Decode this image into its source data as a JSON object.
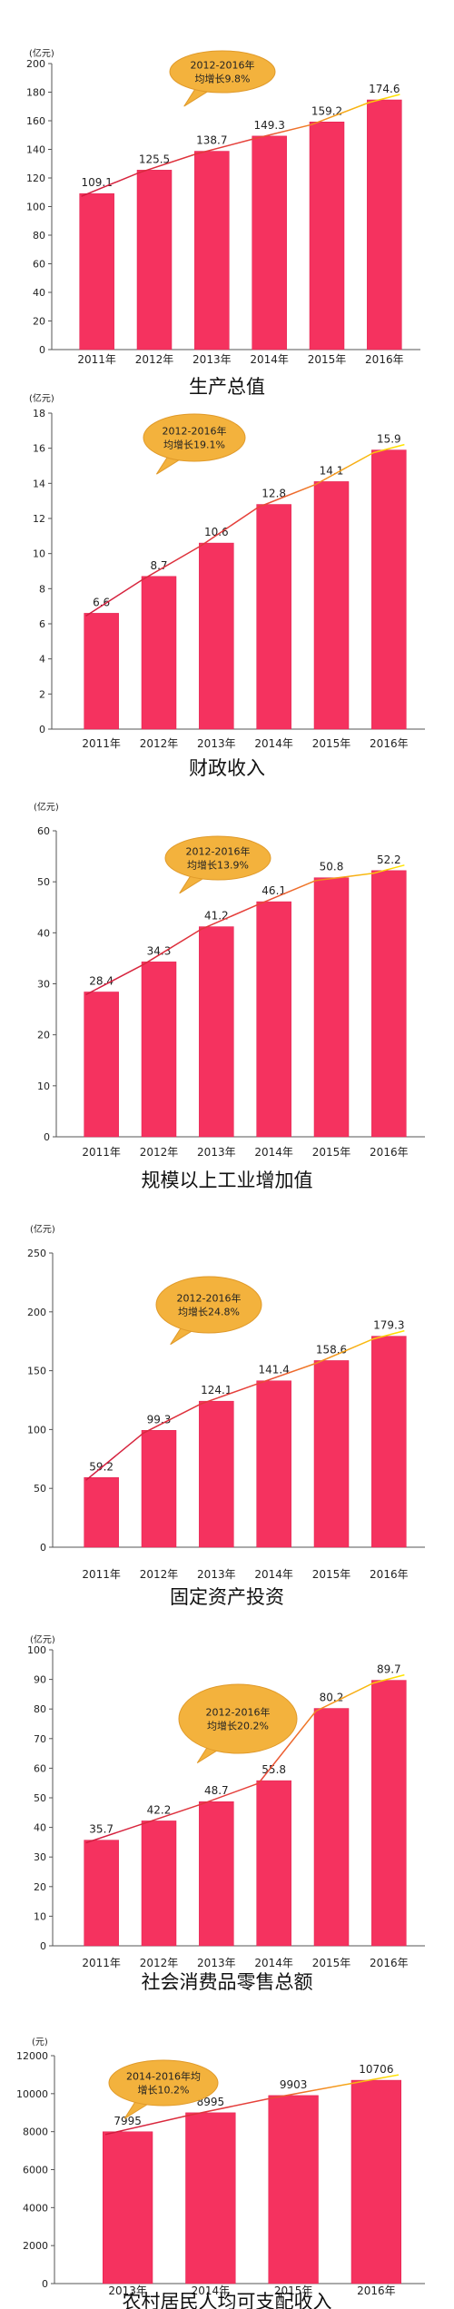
{
  "colors": {
    "bar": "#f5325f",
    "bar_edge": "#e01e4c",
    "bubble": "#f3b23d",
    "bubble_edge": "#e09a2a",
    "trend_start": "#d11a3f",
    "trend_end": "#ffe600",
    "axis": "#555555"
  },
  "chart_data": [
    {
      "type": "bar",
      "title": "生产总值",
      "unit": "(亿元)",
      "categories": [
        "2011年",
        "2012年",
        "2013年",
        "2014年",
        "2015年",
        "2016年"
      ],
      "values": [
        109.1,
        125.5,
        138.7,
        149.3,
        159.2,
        174.6
      ],
      "value_labels": [
        "109.1",
        "125.5",
        "138.7",
        "149.3",
        "159.2",
        "174.6"
      ],
      "ylim": [
        0,
        200
      ],
      "yticks": [
        0,
        20,
        40,
        60,
        80,
        100,
        120,
        140,
        160,
        180,
        200
      ],
      "annotation": {
        "lines": [
          "2012-2016年",
          "均增长9.8%"
        ]
      },
      "trend_line": true,
      "grid": false
    },
    {
      "type": "bar",
      "title": "财政收入",
      "unit": "(亿元)",
      "categories": [
        "2011年",
        "2012年",
        "2013年",
        "2014年",
        "2015年",
        "2016年"
      ],
      "values": [
        6.6,
        8.7,
        10.6,
        12.8,
        14.1,
        15.9
      ],
      "value_labels": [
        "6.6",
        "8.7",
        "10.6",
        "12.8",
        "14.1",
        "15.9"
      ],
      "ylim": [
        0,
        18
      ],
      "yticks": [
        0,
        2,
        4,
        6,
        8,
        10,
        12,
        14,
        16,
        18
      ],
      "annotation": {
        "lines": [
          "2012-2016年",
          "均增长19.1%"
        ]
      },
      "trend_line": true,
      "grid": false
    },
    {
      "type": "bar",
      "title": "规模以上工业增加值",
      "unit": "(亿元)",
      "categories": [
        "2011年",
        "2012年",
        "2013年",
        "2014年",
        "2015年",
        "2016年"
      ],
      "values": [
        28.4,
        34.3,
        41.2,
        46.1,
        50.8,
        52.2
      ],
      "value_labels": [
        "28.4",
        "34.3",
        "41.2",
        "46.1",
        "50.8",
        "52.2"
      ],
      "ylim": [
        0,
        60
      ],
      "yticks": [
        0,
        10,
        20,
        30,
        40,
        50,
        60
      ],
      "annotation": {
        "lines": [
          "2012-2016年",
          "均增长13.9%"
        ]
      },
      "trend_line": true,
      "grid": false
    },
    {
      "type": "bar",
      "title": "固定资产投资",
      "unit": "(亿元)",
      "categories": [
        "2011年",
        "2012年",
        "2013年",
        "2014年",
        "2015年",
        "2016年"
      ],
      "values": [
        59.2,
        99.3,
        124.1,
        141.4,
        158.6,
        179.3
      ],
      "value_labels": [
        "59.2",
        "99.3",
        "124.1",
        "141.4",
        "158.6",
        "179.3"
      ],
      "ylim": [
        0,
        250
      ],
      "yticks": [
        0,
        50,
        100,
        150,
        200,
        250
      ],
      "annotation": {
        "lines": [
          "2012-2016年",
          "均增长24.8%"
        ]
      },
      "trend_line": true,
      "grid": false
    },
    {
      "type": "bar",
      "title": "社会消费品零售总额",
      "unit": "(亿元)",
      "categories": [
        "2011年",
        "2012年",
        "2013年",
        "2014年",
        "2015年",
        "2016年"
      ],
      "values": [
        35.7,
        42.2,
        48.7,
        55.8,
        80.2,
        89.7
      ],
      "value_labels": [
        "35.7",
        "42.2",
        "48.7",
        "55.8",
        "80.2",
        "89.7"
      ],
      "ylim": [
        0,
        100
      ],
      "yticks": [
        0,
        10,
        20,
        30,
        40,
        50,
        60,
        70,
        80,
        90,
        100
      ],
      "annotation": {
        "lines": [
          "2012-2016年",
          "均增长20.2%"
        ]
      },
      "trend_line": true,
      "grid": false
    },
    {
      "type": "bar",
      "title": "农村居民人均可支配收入",
      "unit": "(元)",
      "categories": [
        "2013年",
        "2014年",
        "2015年",
        "2016年"
      ],
      "values": [
        7995,
        8995,
        9903,
        10706
      ],
      "value_labels": [
        "7995",
        "8995",
        "9903",
        "10706"
      ],
      "ylim": [
        0,
        12000
      ],
      "yticks": [
        0,
        2000,
        4000,
        6000,
        8000,
        10000,
        12000
      ],
      "annotation": {
        "lines": [
          "2014-2016年均",
          "增长10.2%"
        ]
      },
      "trend_line": true,
      "grid": false
    }
  ]
}
